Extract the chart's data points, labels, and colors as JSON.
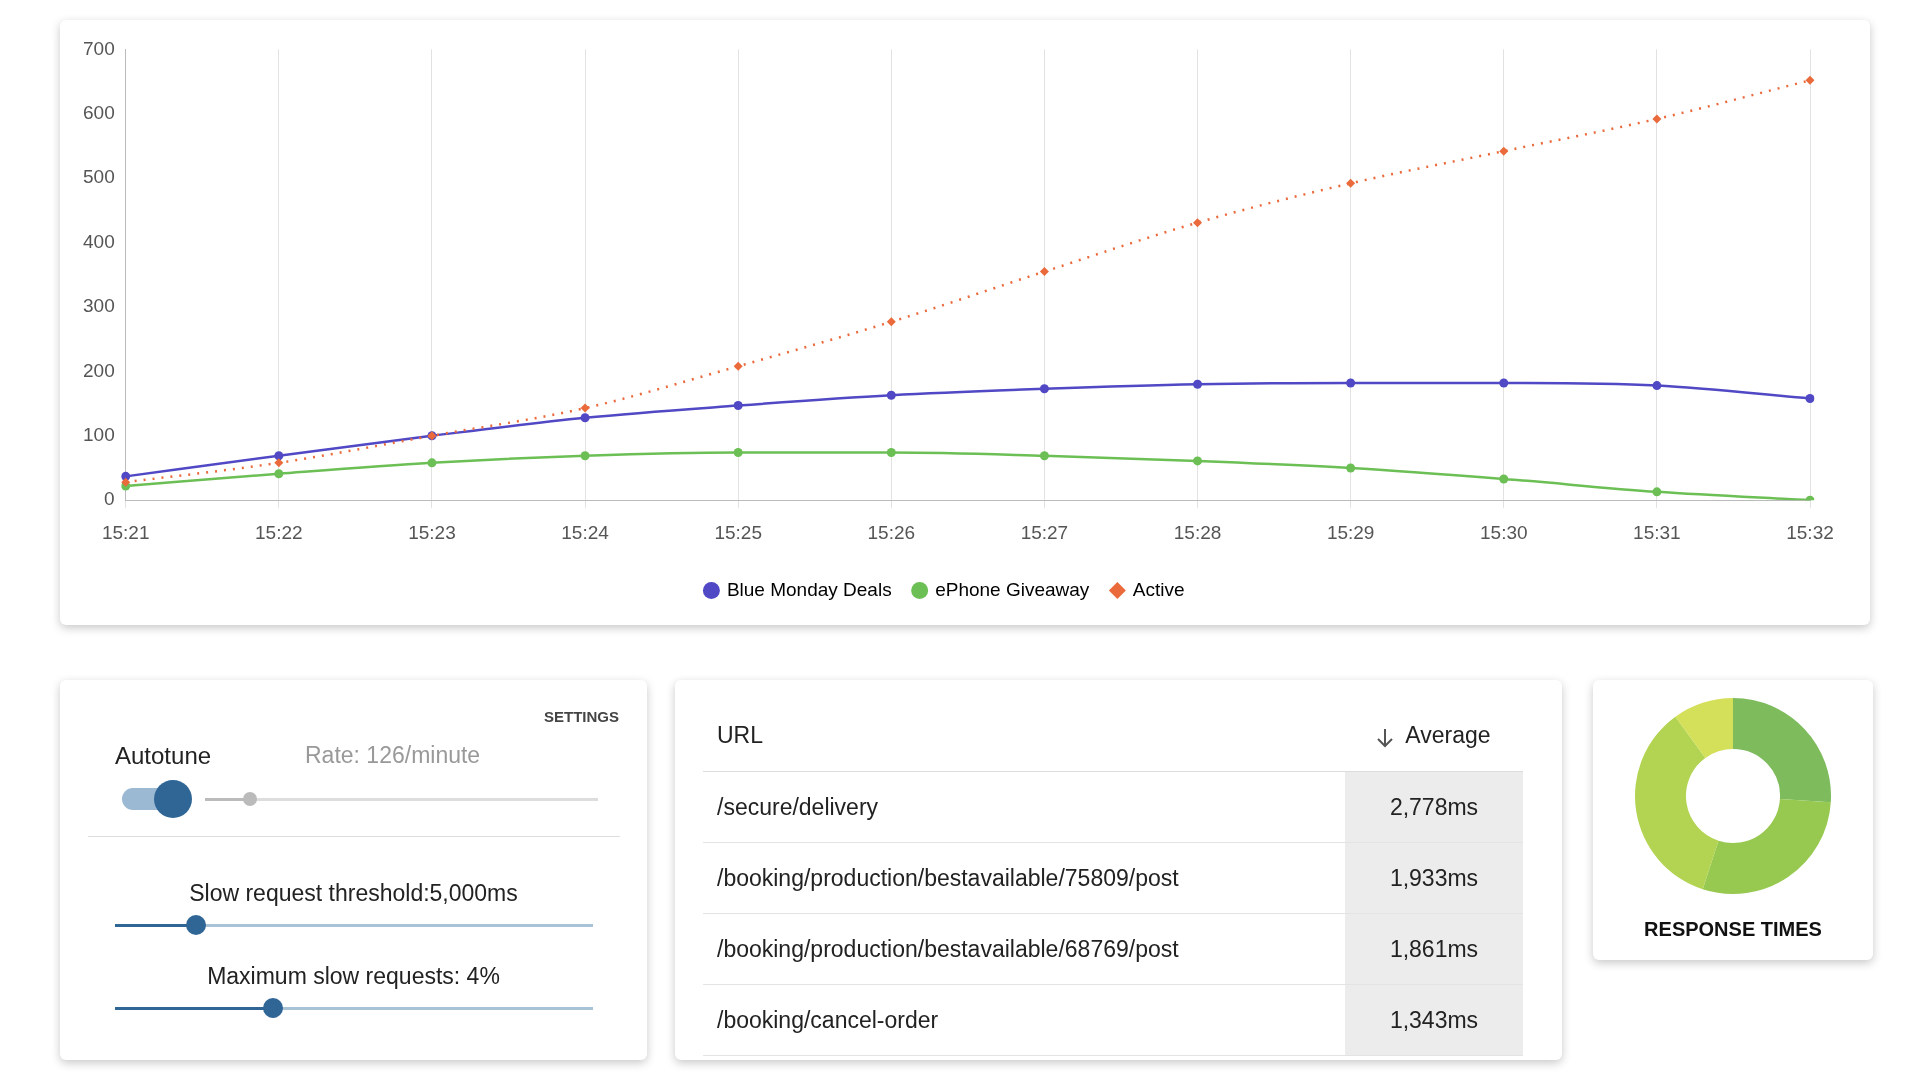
{
  "chart_data": [
    {
      "type": "line",
      "categories": [
        "15:21",
        "15:22",
        "15:23",
        "15:24",
        "15:25",
        "15:26",
        "15:27",
        "15:28",
        "15:29",
        "15:30",
        "15:31",
        "15:32"
      ],
      "series": [
        {
          "name": "Blue Monday Deals",
          "color": "#5048c4",
          "values": [
            37,
            69,
            100,
            128,
            147,
            163,
            173,
            180,
            182,
            182,
            178,
            158
          ]
        },
        {
          "name": "ePhone Giveaway",
          "color": "#6cbf55",
          "values": [
            22,
            41,
            58,
            69,
            74,
            74,
            69,
            61,
            50,
            33,
            13,
            0
          ]
        },
        {
          "name": "Active",
          "color": "#ea6a3c",
          "marker": "diamond",
          "line_style": "dotted",
          "values": [
            28,
            58,
            100,
            143,
            208,
            277,
            355,
            431,
            492,
            542,
            592,
            652
          ]
        }
      ],
      "ylim": [
        0,
        700
      ],
      "yticks": [
        0,
        100,
        200,
        300,
        400,
        500,
        600,
        700
      ],
      "grid": "x",
      "legend": "bottom",
      "marker": "circle",
      "line_style": "solid"
    },
    {
      "type": "other",
      "title": "SETTINGS",
      "annotations": [
        "Autotune",
        "Rate: 126/minute",
        "Slow request threshold:5,000ms",
        "Maximum slow requests: 4%"
      ]
    },
    {
      "type": "other",
      "xlabel": "URL",
      "ylabel": "Average",
      "categories": [
        "/secure/delivery",
        "/booking/production/bestavailable/75809/post",
        "/booking/production/bestavailable/68769/post",
        "/booking/cancel-order"
      ],
      "value_labels": [
        "2,778ms",
        "1,933ms",
        "1,861ms",
        "1,343ms"
      ]
    },
    {
      "type": "donut",
      "title": "RESPONSE TIMES",
      "categories": [
        null,
        null,
        null,
        null
      ],
      "values": [
        26,
        29,
        35,
        10
      ],
      "colors": [
        "#7dbb5c",
        "#97c84f",
        "#b3d452",
        "#d4e05a"
      ],
      "legend": false
    }
  ]
}
